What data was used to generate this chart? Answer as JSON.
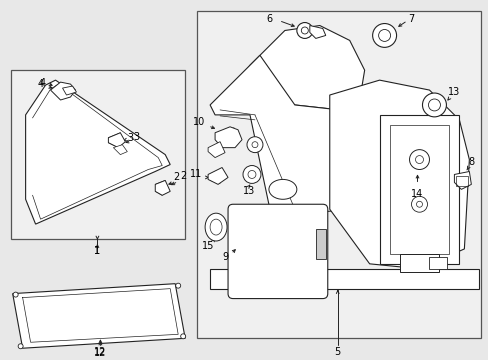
{
  "fig_bg": "#e8e8e8",
  "panel_bg": "#f0f0f0",
  "lc": "#222222",
  "lw": 0.8,
  "label_fs": 7.0
}
